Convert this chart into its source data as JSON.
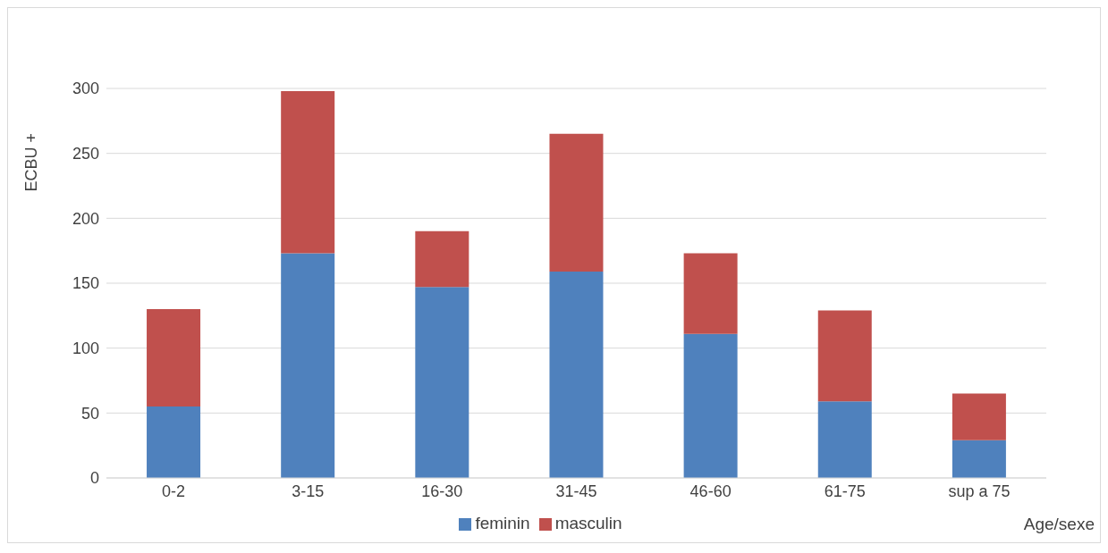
{
  "chart_data": {
    "type": "bar",
    "stacked": true,
    "xlabel": "Age/sexe",
    "ylabel": "ECBU +",
    "categories": [
      "0-2",
      "3-15",
      "16-30",
      "31-45",
      "46-60",
      "61-75",
      "sup a 75"
    ],
    "series": [
      {
        "name": "feminin",
        "color": "#4f81bd",
        "values": [
          55,
          173,
          147,
          159,
          111,
          59,
          29
        ]
      },
      {
        "name": "masculin",
        "color": "#c0504d",
        "values": [
          75,
          125,
          43,
          106,
          62,
          70,
          36
        ]
      }
    ],
    "ylim": [
      0,
      300
    ],
    "yticks": [
      0,
      50,
      100,
      150,
      200,
      250,
      300
    ],
    "grid": "y",
    "legend": "bottom"
  }
}
